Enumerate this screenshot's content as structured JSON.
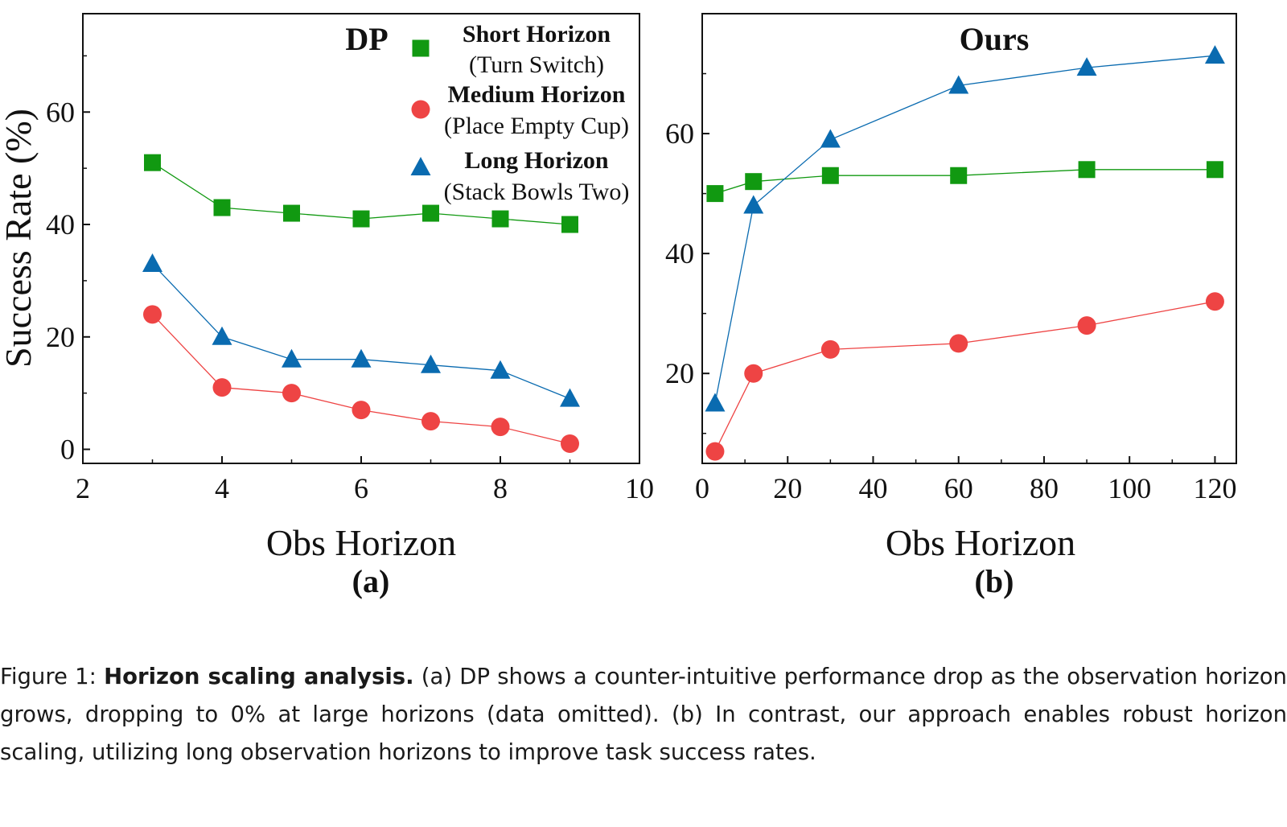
{
  "chart_data": [
    {
      "type": "line",
      "title": "DP",
      "sublabel": "(a)",
      "xlabel": "Obs Horizon",
      "ylabel": "Success Rate (%)",
      "xlim": [
        2,
        10
      ],
      "ylim": [
        -2.5,
        77.5
      ],
      "xticks": [
        2,
        4,
        6,
        8,
        10
      ],
      "yticks": [
        0,
        20,
        40,
        60
      ],
      "legend_position": "top-right",
      "series": [
        {
          "name": "Short Horizon",
          "detail": "(Turn Switch)",
          "marker": "square",
          "color": "#119911",
          "x": [
            3,
            4,
            5,
            6,
            7,
            8,
            9
          ],
          "y": [
            51,
            43,
            42,
            41,
            42,
            41,
            40
          ]
        },
        {
          "name": "Medium Horizon",
          "detail": "(Place Empty Cup)",
          "marker": "circle",
          "color": "#ee4444",
          "x": [
            3,
            4,
            5,
            6,
            7,
            8,
            9
          ],
          "y": [
            24,
            11,
            10,
            7,
            5,
            4,
            1
          ]
        },
        {
          "name": "Long Horizon",
          "detail": "(Stack Bowls Two)",
          "marker": "triangle",
          "color": "#0a6bb0",
          "x": [
            3,
            4,
            5,
            6,
            7,
            8,
            9
          ],
          "y": [
            33,
            20,
            16,
            16,
            15,
            14,
            9
          ]
        }
      ]
    },
    {
      "type": "line",
      "title": "Ours",
      "sublabel": "(b)",
      "xlabel": "Obs Horizon",
      "ylabel": "",
      "xlim": [
        0,
        125
      ],
      "ylim": [
        5,
        80
      ],
      "xticks": [
        0,
        20,
        40,
        60,
        80,
        100,
        120
      ],
      "yticks": [
        20,
        40,
        60
      ],
      "series": [
        {
          "name": "Short Horizon",
          "marker": "square",
          "color": "#119911",
          "x": [
            3,
            12,
            30,
            60,
            90,
            120
          ],
          "y": [
            50,
            52,
            53,
            53,
            54,
            54
          ]
        },
        {
          "name": "Medium Horizon",
          "marker": "circle",
          "color": "#ee4444",
          "x": [
            3,
            12,
            30,
            60,
            90,
            120
          ],
          "y": [
            7,
            20,
            24,
            25,
            28,
            32
          ]
        },
        {
          "name": "Long Horizon",
          "marker": "triangle",
          "color": "#0a6bb0",
          "x": [
            3,
            12,
            30,
            60,
            90,
            120
          ],
          "y": [
            15,
            48,
            59,
            68,
            71,
            73
          ]
        }
      ]
    }
  ],
  "caption": {
    "label": "Figure 1: ",
    "bold": "Horizon scaling analysis.",
    "text": " (a) DP shows a counter-intuitive performance drop as the observation horizon grows, dropping to 0% at large horizons (data omitted). (b) In contrast, our approach enables robust horizon scaling, utilizing long observation horizons to improve task success rates."
  }
}
